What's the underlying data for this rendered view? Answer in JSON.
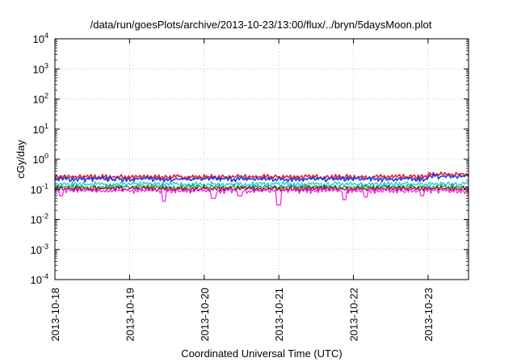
{
  "chart_data": {
    "type": "line",
    "title": "/data/run/goesPlots/archive/2013-10-23/13:00/flux/../bryn/5daysMoon.plot",
    "xlabel": "Coordinated Universal Time (UTC)",
    "ylabel": "cGy/day",
    "yscale": "log",
    "ylim": [
      0.0001,
      10000
    ],
    "xlim": [
      "2013-10-18T00:00",
      "2013-10-23T13:00"
    ],
    "grid": true,
    "legend": "none",
    "y_ticks": [
      {
        "base": "10",
        "exp": "-4",
        "value": 0.0001
      },
      {
        "base": "10",
        "exp": "-3",
        "value": 0.001
      },
      {
        "base": "10",
        "exp": "-2",
        "value": 0.01
      },
      {
        "base": "10",
        "exp": "-1",
        "value": 0.1
      },
      {
        "base": "10",
        "exp": "0",
        "value": 1
      },
      {
        "base": "10",
        "exp": "1",
        "value": 10
      },
      {
        "base": "10",
        "exp": "2",
        "value": 100
      },
      {
        "base": "10",
        "exp": "3",
        "value": 1000
      },
      {
        "base": "10",
        "exp": "4",
        "value": 10000
      }
    ],
    "x_ticks": [
      "2013-10-18",
      "2013-10-19",
      "2013-10-20",
      "2013-10-21",
      "2013-10-22",
      "2013-10-23"
    ],
    "series": [
      {
        "color": "#e8202a",
        "base": 0.26,
        "drops": [
          [
            "2013-10-23T00:00",
            "2013-10-23T13:00",
            0.32
          ]
        ]
      },
      {
        "color": "#1a3fe0",
        "base": 0.22,
        "drops": [
          [
            "2013-10-23T00:00",
            "2013-10-23T13:00",
            0.27
          ]
        ]
      },
      {
        "color": "#20c8d8",
        "base": 0.15
      },
      {
        "color": "#2a9a3a",
        "base": 0.12
      },
      {
        "color": "#7a1630",
        "base": 0.105
      },
      {
        "color": "#ff20e8",
        "base": 0.09,
        "dips": [
          [
            "2013-10-18T02:00",
            0.06
          ],
          [
            "2013-10-19T11:00",
            0.04
          ],
          [
            "2013-10-20T03:00",
            0.05
          ],
          [
            "2013-10-20T11:30",
            0.06
          ],
          [
            "2013-10-21T00:00",
            0.03
          ],
          [
            "2013-10-21T21:00",
            0.045
          ],
          [
            "2013-10-22T04:00",
            0.055
          ],
          [
            "2013-10-22T22:00",
            0.06
          ]
        ]
      }
    ]
  }
}
